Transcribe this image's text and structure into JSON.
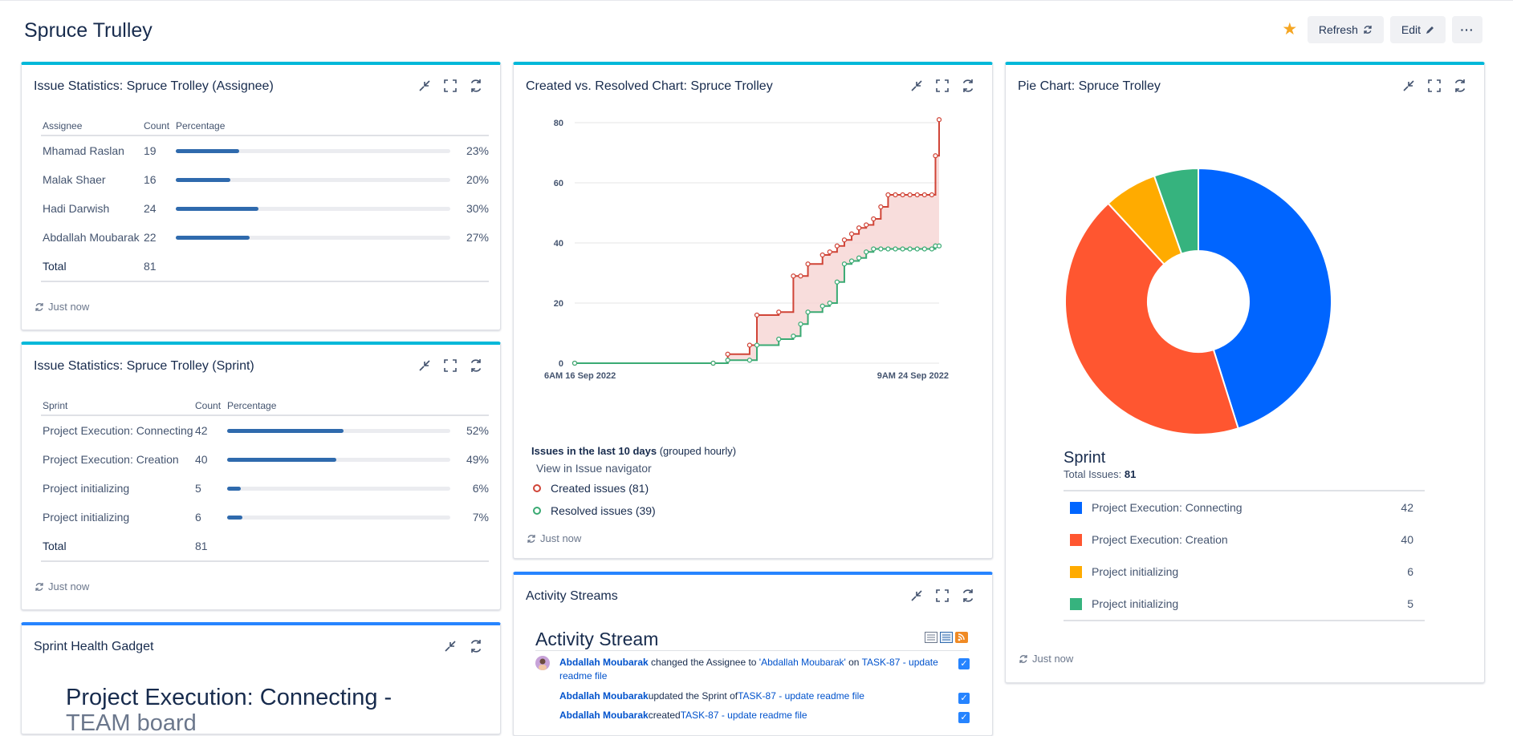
{
  "page": {
    "title": "Spruce Trulley"
  },
  "header": {
    "refresh_label": "Refresh",
    "edit_label": "Edit",
    "more_label": "···"
  },
  "colors": {
    "accent_cyan": "#00b8d9",
    "accent_blue": "#2684ff",
    "bar": "#2f6aad",
    "created": "#d04437",
    "resolved": "#3aaa73"
  },
  "assignee": {
    "title": "Issue Statistics: Spruce Trolley (Assignee)",
    "headers": {
      "name": "Assignee",
      "count": "Count",
      "pct": "Percentage"
    },
    "rows": [
      {
        "name": "Mhamad Raslan",
        "count": "19",
        "pct": "23%",
        "value": 23
      },
      {
        "name": "Malak Shaer",
        "count": "16",
        "pct": "20%",
        "value": 20
      },
      {
        "name": "Hadi Darwish",
        "count": "24",
        "pct": "30%",
        "value": 30
      },
      {
        "name": "Abdallah Moubarak",
        "count": "22",
        "pct": "27%",
        "value": 27
      }
    ],
    "total_label": "Total",
    "total": "81",
    "updated": "Just now"
  },
  "sprint": {
    "title": "Issue Statistics: Spruce Trolley (Sprint)",
    "headers": {
      "name": "Sprint",
      "count": "Count",
      "pct": "Percentage"
    },
    "rows": [
      {
        "name": "Project Execution: Connecting",
        "count": "42",
        "pct": "52%",
        "value": 52
      },
      {
        "name": "Project Execution: Creation",
        "count": "40",
        "pct": "49%",
        "value": 49
      },
      {
        "name": "Project initializing",
        "count": "5",
        "pct": "6%",
        "value": 6
      },
      {
        "name": "Project initializing",
        "count": "6",
        "pct": "7%",
        "value": 7
      }
    ],
    "total_label": "Total",
    "total": "81",
    "updated": "Just now"
  },
  "health": {
    "title": "Sprint Health Gadget",
    "heading_line1": "Project Execution: Connecting -",
    "heading_line2": "TEAM board"
  },
  "created_resolved": {
    "title": "Created vs. Resolved Chart: Spruce Trolley",
    "summary_bold": "Issues in the last 10 days",
    "summary_rest": " (grouped hourly)",
    "navigator_link": "View in Issue navigator",
    "created_label": "Created issues (81)",
    "resolved_label": "Resolved issues (39)",
    "updated": "Just now"
  },
  "chart_data": {
    "type": "line",
    "title": "Created vs. Resolved Chart: Spruce Trolley",
    "xlabel": "",
    "ylabel": "",
    "x_range_labels": [
      "6AM 16 Sep 2022",
      "9AM 24 Sep 2022"
    ],
    "yticks": [
      "0",
      "20",
      "40",
      "60",
      "80"
    ],
    "ylim": [
      0,
      80
    ],
    "x": [
      0,
      0.38,
      0.42,
      0.48,
      0.5,
      0.56,
      0.6,
      0.62,
      0.64,
      0.68,
      0.7,
      0.72,
      0.74,
      0.76,
      0.78,
      0.8,
      0.82,
      0.84,
      0.86,
      0.88,
      0.9,
      0.92,
      0.94,
      0.96,
      0.98,
      0.99,
      1.0
    ],
    "series": [
      {
        "name": "Created issues (81)",
        "values": [
          0,
          0,
          3,
          6,
          16,
          17,
          29,
          29,
          33,
          36,
          37,
          39,
          41,
          43,
          45,
          46,
          48,
          52,
          56,
          56,
          56,
          56,
          56,
          56,
          56,
          69,
          81
        ]
      },
      {
        "name": "Resolved issues (39)",
        "values": [
          0,
          0,
          1,
          1,
          6,
          8,
          9,
          13,
          17,
          19,
          20,
          27,
          33,
          34,
          35,
          37,
          38,
          38,
          38,
          38,
          38,
          38,
          38,
          38,
          38,
          39,
          39
        ]
      }
    ]
  },
  "pie": {
    "title": "Pie Chart: Spruce Trolley",
    "legend_title": "Sprint",
    "total_label": "Total Issues:",
    "total": "81",
    "updated": "Just now",
    "slices": [
      {
        "label": "Project Execution: Connecting",
        "value": 42,
        "display": "42",
        "color": "#0065ff"
      },
      {
        "label": "Project Execution: Creation",
        "value": 40,
        "display": "40",
        "color": "#ff5630"
      },
      {
        "label": "Project initializing",
        "value": 6,
        "display": "6",
        "color": "#ffab00"
      },
      {
        "label": "Project initializing",
        "value": 5,
        "display": "5",
        "color": "#36b37e"
      }
    ]
  },
  "activity": {
    "title": "Activity Streams",
    "heading": "Activity Stream",
    "items": [
      {
        "user": "Abdallah Moubarak",
        "text1": " changed the Assignee to ",
        "link1": "'Abdallah Moubarak'",
        "text2": " on ",
        "link2": "TASK-87 - update readme file"
      },
      {
        "user": "Abdallah Moubarak",
        "text1": " updated the Sprint of ",
        "link1": "TASK-87 - update readme file",
        "text2": "",
        "link2": ""
      },
      {
        "user": "Abdallah Moubarak",
        "text1": " created ",
        "link1": "TASK-87 - update readme file",
        "text2": "",
        "link2": ""
      }
    ]
  }
}
